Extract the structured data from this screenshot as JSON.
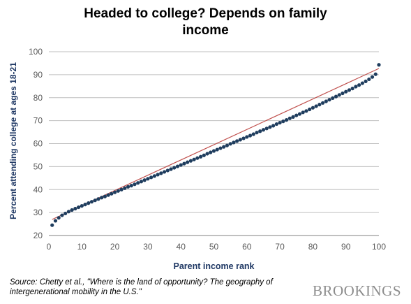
{
  "chart_data": {
    "type": "scatter",
    "title_lines": [
      "Headed to college? Depends on family",
      "income"
    ],
    "xlabel": "Parent income rank",
    "ylabel": "Percent attending college at ages 18-21",
    "xlim": [
      0,
      100
    ],
    "ylim": [
      20,
      100
    ],
    "xticks": [
      0,
      10,
      20,
      30,
      40,
      50,
      60,
      70,
      80,
      90,
      100
    ],
    "yticks": [
      20,
      30,
      40,
      50,
      60,
      70,
      80,
      90,
      100
    ],
    "grid": "horizontal",
    "legend": "none",
    "point_color": "#1f3d5e",
    "fit_line_color": "#c0504d",
    "fit_line": {
      "x": [
        1,
        100
      ],
      "y": [
        27.0,
        92.7
      ]
    },
    "points": {
      "x": [
        1,
        2,
        3,
        4,
        5,
        6,
        7,
        8,
        9,
        10,
        11,
        12,
        13,
        14,
        15,
        16,
        17,
        18,
        19,
        20,
        21,
        22,
        23,
        24,
        25,
        26,
        27,
        28,
        29,
        30,
        31,
        32,
        33,
        34,
        35,
        36,
        37,
        38,
        39,
        40,
        41,
        42,
        43,
        44,
        45,
        46,
        47,
        48,
        49,
        50,
        51,
        52,
        53,
        54,
        55,
        56,
        57,
        58,
        59,
        60,
        61,
        62,
        63,
        64,
        65,
        66,
        67,
        68,
        69,
        70,
        71,
        72,
        73,
        74,
        75,
        76,
        77,
        78,
        79,
        80,
        81,
        82,
        83,
        84,
        85,
        86,
        87,
        88,
        89,
        90,
        91,
        92,
        93,
        94,
        95,
        96,
        97,
        98,
        99,
        100
      ],
      "y": [
        24.5,
        26.4,
        27.7,
        28.8,
        29.6,
        30.4,
        31.1,
        31.7,
        32.3,
        32.9,
        33.5,
        34.1,
        34.7,
        35.3,
        35.9,
        36.5,
        37.0,
        37.6,
        38.2,
        38.8,
        39.4,
        40.0,
        40.6,
        41.2,
        41.7,
        42.3,
        42.9,
        43.5,
        44.1,
        44.7,
        45.3,
        45.9,
        46.5,
        47.1,
        47.7,
        48.3,
        48.9,
        49.5,
        50.1,
        50.7,
        51.3,
        51.9,
        52.5,
        53.1,
        53.7,
        54.3,
        54.9,
        55.6,
        56.2,
        56.8,
        57.4,
        58.0,
        58.6,
        59.2,
        59.9,
        60.5,
        61.1,
        61.7,
        62.3,
        62.9,
        63.5,
        64.1,
        64.8,
        65.4,
        66.0,
        66.6,
        67.2,
        67.8,
        68.5,
        69.1,
        69.7,
        70.3,
        71.0,
        71.6,
        72.3,
        72.9,
        73.6,
        74.2,
        74.9,
        75.6,
        76.3,
        77.0,
        77.7,
        78.4,
        79.1,
        79.8,
        80.5,
        81.2,
        81.9,
        82.6,
        83.3,
        84.0,
        84.8,
        85.5,
        86.3,
        87.1,
        88.0,
        89.0,
        90.2,
        94.3
      ]
    }
  },
  "source_text": "Source: Chetty et al., \"Where is the land of opportunity? The geography of intergenerational mobility in the U.S.\"",
  "brand": "BROOKINGS"
}
